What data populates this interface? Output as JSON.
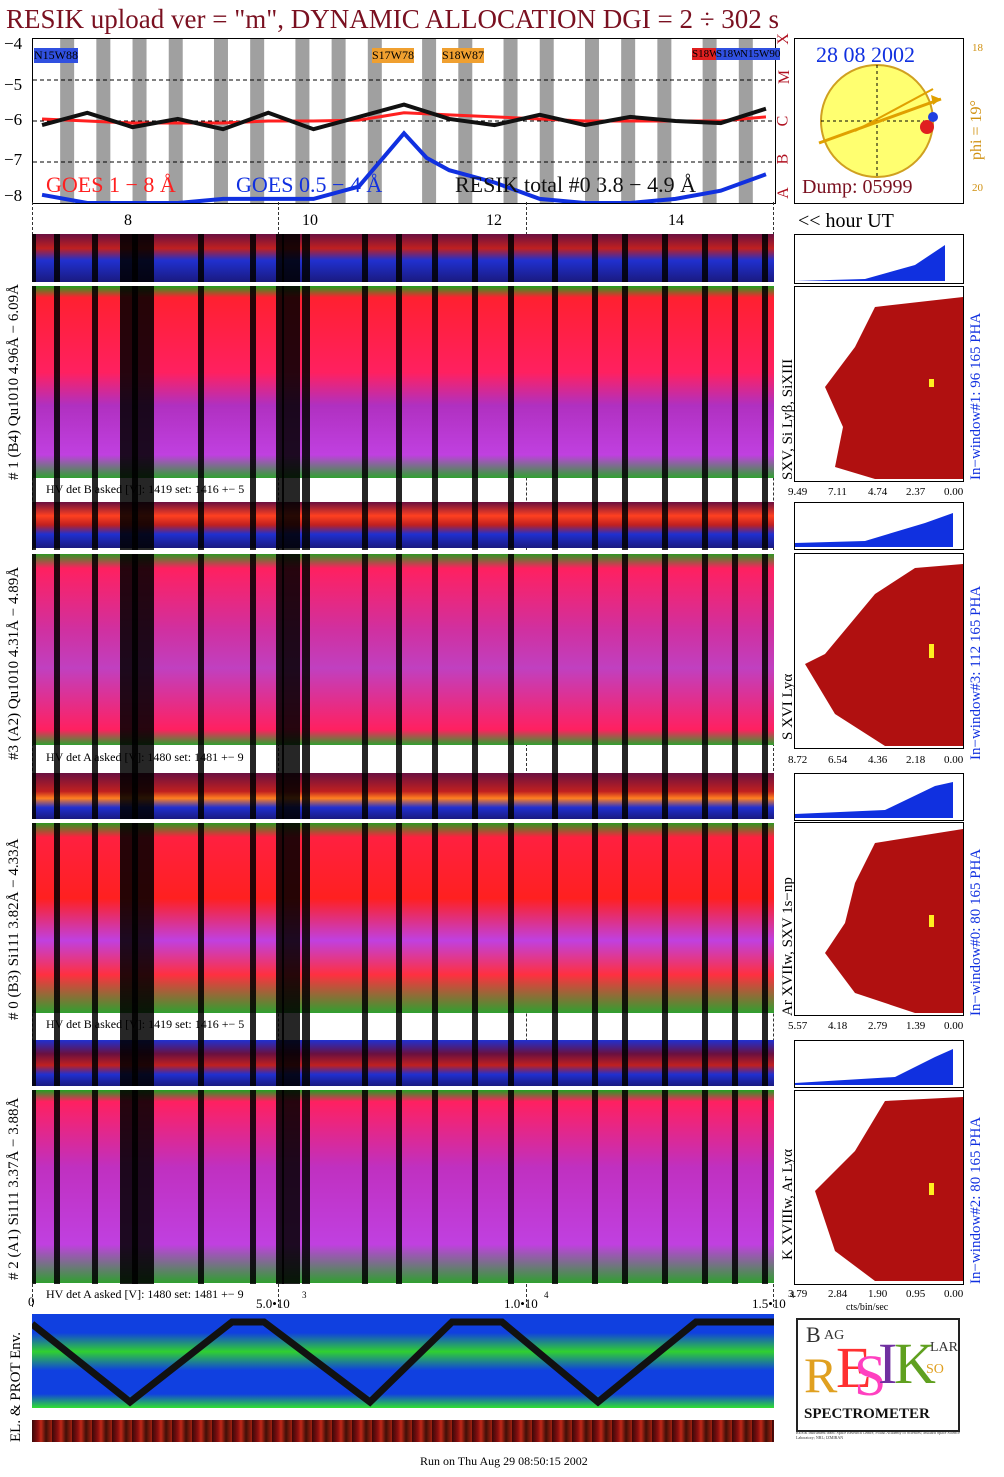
{
  "header": {
    "title": "RESIK upload ver = \"m\", DYNAMIC ALLOCATION  DGI =   2 ÷ 302 s",
    "footer": "Run on Thu Aug 29 08:50:15 2002"
  },
  "goes": {
    "yticks": [
      "−4",
      "−5",
      "−6",
      "−7",
      "−8"
    ],
    "flare_classes": [
      "X",
      "M",
      "C",
      "B",
      "A"
    ],
    "active_regions": [
      "N15W88",
      "S17W78",
      "S18W87",
      "S18W78",
      "S18W88",
      "N15W90"
    ],
    "legend": {
      "goes_long": "GOES 1 − 8 Å",
      "goes_short": "GOES 0.5 − 4 Å",
      "resik": "RESIK total #0  3.8 − 4.9 Å"
    },
    "colors": {
      "long": "#ff2020",
      "short": "#1030e0",
      "resik": "#111111"
    }
  },
  "sun_panel": {
    "date": "28 08 2002",
    "dump": "Dump: 05999",
    "phi": "phi = 19°",
    "phi_ticks": [
      "18",
      "20"
    ],
    "hour_label": "<< hour UT"
  },
  "time_axis": {
    "hours": [
      "8",
      "10",
      "12",
      "14"
    ],
    "bottom_ticks": [
      "0",
      "5.0•10",
      "3",
      "1.0•10",
      "4",
      "1.5•10",
      "4"
    ]
  },
  "channels": [
    {
      "label": "# 1 (B4) Qu1010 4.96Å − 6.09Å",
      "hv": "HV det B asked [V]:  1419 set:  1416  +−    5",
      "lines": "SXV, Si Lyβ, SiXIII",
      "window": "In−window#1:   96 165  PHA",
      "scale": [
        "9.49",
        "7.11",
        "4.74",
        "2.37",
        "0.00"
      ]
    },
    {
      "label": "#3 (A2) Qu1010  4.31Å − 4.89Å",
      "hv": "HV det A asked [V]:  1480 set:  1481  +−    9",
      "lines": "S XVI Lyα",
      "window": "In−window#3:  112 165  PHA",
      "scale": [
        "8.72",
        "6.54",
        "4.36",
        "2.18",
        "0.00"
      ]
    },
    {
      "label": "# 0 (B3) Si111  3.82Å − 4.33Å",
      "hv": "HV det B asked [V]:  1419 set:  1416  +−    5",
      "lines": "Ar XVIIw, SXV 1s−np",
      "window": "In−window#0:   80 165  PHA",
      "scale": [
        "5.57",
        "4.18",
        "2.79",
        "1.39",
        "0.00"
      ]
    },
    {
      "label": "# 2 (A1) Si111  3.37Å − 3.88Å",
      "hv": "HV det A asked [V]:  1480 set:  1481  +−    9",
      "lines": "K XVIIIw, Ar Lyα",
      "window": "In−window#2:   80 165  PHA",
      "scale": [
        "3.79",
        "2.84",
        "1.90",
        "0.95",
        "0.00"
      ],
      "scale_unit": "cts/bin/sec"
    }
  ],
  "env": {
    "label": "EL. & PROT Env."
  },
  "logo": {
    "letters": [
      "R",
      "E",
      "S",
      "I",
      "K"
    ],
    "small": [
      "B",
      "AG",
      "SO",
      "LAR"
    ],
    "text": "SPECTROMETER",
    "fine_print": "RESIK instrument team: Space Research Centre, Polish Academy of Sciences; Mullard Space Science Laboratory; NRL; IZMIRAN"
  },
  "chart_data": {
    "type": "line",
    "title": "RESIK upload ver = \"m\", DYNAMIC ALLOCATION  DGI =   2 ÷ 302 s",
    "xlabel": "hour UT",
    "ylabel": "",
    "x_hour_ticks": [
      8,
      10,
      12,
      14
    ],
    "ylim": [
      -8,
      -4
    ],
    "series": [
      {
        "name": "GOES 1 − 8 Å",
        "x": [
          7.0,
          7.5,
          8.0,
          8.5,
          9.0,
          9.5,
          10.0,
          10.5,
          11.0,
          11.5,
          12.0,
          12.5,
          13.0,
          13.5,
          14.0,
          14.5,
          15.0
        ],
        "y": [
          -5.95,
          -6.0,
          -6.05,
          -6.05,
          -6.05,
          -6.0,
          -6.0,
          -5.98,
          -5.8,
          -5.85,
          -5.9,
          -5.95,
          -6.0,
          -6.0,
          -6.0,
          -6.0,
          -5.9
        ]
      },
      {
        "name": "GOES 0.5 − 4 Å",
        "x": [
          7.0,
          7.5,
          8.0,
          8.5,
          9.0,
          9.5,
          10.0,
          10.5,
          11.0,
          11.25,
          11.5,
          12.0,
          12.5,
          13.0,
          13.5,
          14.0,
          14.5,
          15.0
        ],
        "y": [
          -7.8,
          -8.0,
          -8.0,
          -8.0,
          -7.9,
          -7.9,
          -7.9,
          -7.6,
          -6.3,
          -6.9,
          -7.2,
          -7.5,
          -7.9,
          -8.0,
          -8.0,
          -7.9,
          -7.7,
          -7.3
        ]
      },
      {
        "name": "RESIK total #0  3.8 − 4.9 Å",
        "x": [
          7.0,
          7.5,
          8.0,
          8.5,
          9.0,
          9.5,
          10.0,
          10.5,
          11.0,
          11.5,
          12.0,
          12.5,
          13.0,
          13.5,
          14.0,
          14.5,
          15.0
        ],
        "y": [
          -6.1,
          -5.8,
          -6.15,
          -5.95,
          -6.2,
          -5.8,
          -6.2,
          -5.9,
          -5.6,
          -5.95,
          -6.1,
          -5.85,
          -6.1,
          -5.9,
          -6.0,
          -6.05,
          -5.7
        ]
      }
    ]
  }
}
